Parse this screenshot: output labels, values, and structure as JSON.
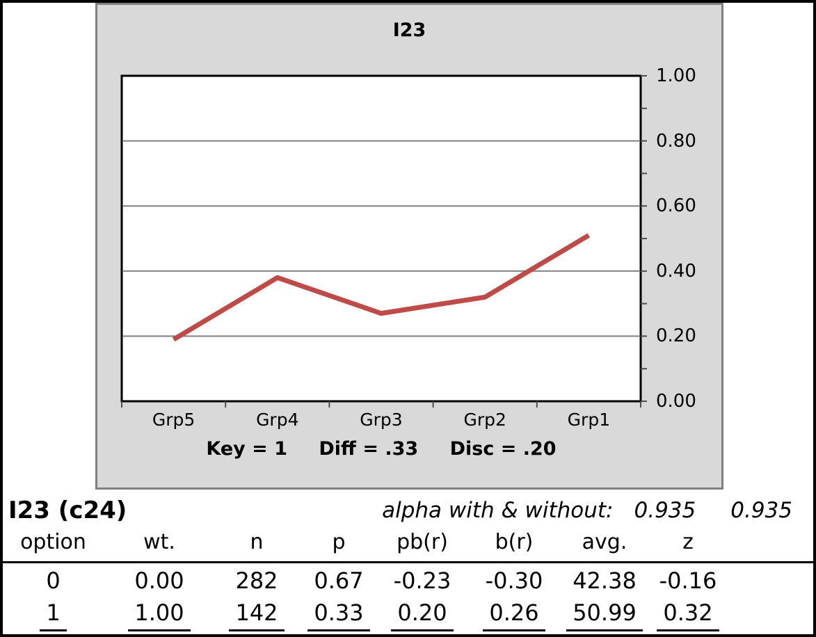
{
  "chart_data": {
    "type": "line",
    "title": "I23",
    "categories": [
      "Grp5",
      "Grp4",
      "Grp3",
      "Grp2",
      "Grp1"
    ],
    "values": [
      0.19,
      0.38,
      0.27,
      0.32,
      0.51
    ],
    "xlabel": "",
    "ylabel": "",
    "ylim": [
      0,
      1
    ],
    "yticks": [
      {
        "v": 0.0,
        "label": "0.00"
      },
      {
        "v": 0.2,
        "label": "0.20"
      },
      {
        "v": 0.4,
        "label": "0.40"
      },
      {
        "v": 0.6,
        "label": "0.60"
      },
      {
        "v": 0.8,
        "label": "0.80"
      },
      {
        "v": 1.0,
        "label": "1.00"
      }
    ],
    "ytick_minor_step": 0.1,
    "gridlines": [
      0.2,
      0.4,
      0.6,
      0.8
    ],
    "grid": "horizontal-major",
    "legend": "none",
    "line_color": "#be4b48",
    "gridline_color": "#808080",
    "tick_color": "#4d4d4d",
    "panel_bg": "#d9d9d9",
    "annotation": {
      "key": "Key = 1",
      "diff": "Diff = .33",
      "disc": "Disc = .20"
    }
  },
  "summary": {
    "item_label": "I23 (c24)",
    "alpha_label": "alpha with & without:",
    "alpha_with": "0.935",
    "alpha_without": "0.935"
  },
  "item_table": {
    "columns": [
      "option",
      "wt.",
      "n",
      "p",
      "pb(r)",
      "b(r)",
      "avg.",
      "z"
    ],
    "rows": [
      {
        "underlined": false,
        "cells": [
          "0",
          "0.00",
          "282",
          "0.67",
          "-0.23",
          "-0.30",
          "42.38",
          "-0.16"
        ]
      },
      {
        "underlined": true,
        "cells": [
          "1",
          "1.00",
          "142",
          "0.33",
          "0.20",
          "0.26",
          "50.99",
          "0.32"
        ]
      }
    ]
  }
}
